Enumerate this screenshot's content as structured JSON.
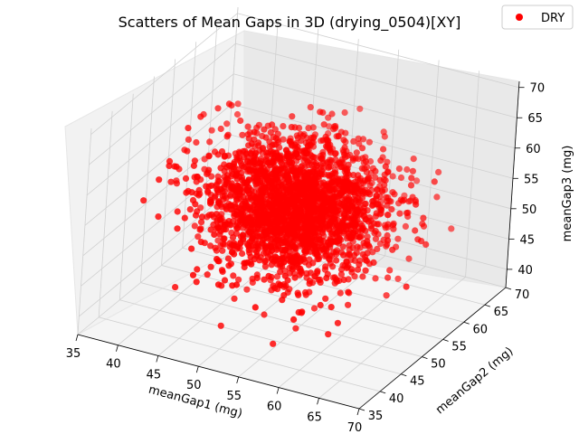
{
  "chart_data": {
    "type": "scatter",
    "projection": "3d",
    "title": "Scatters of Mean Gaps in 3D (drying_0504)[XY]",
    "xlabel": "meanGap1 (mg)",
    "ylabel": "meanGap2 (mg)",
    "zlabel": "meanGap3 (mg)",
    "xlim": [
      35,
      70
    ],
    "ylim": [
      35,
      70
    ],
    "zlim": [
      37,
      71
    ],
    "x_ticks": [
      "35",
      "40",
      "45",
      "50",
      "55",
      "60",
      "65",
      "70"
    ],
    "y_ticks": [
      "35",
      "40",
      "45",
      "50",
      "55",
      "60",
      "65",
      "70"
    ],
    "z_ticks": [
      "40",
      "45",
      "50",
      "55",
      "60",
      "65",
      "70"
    ],
    "grid": true,
    "legend_position": "top-right",
    "series": [
      {
        "name": "DRY",
        "color": "#ff0000",
        "distribution": {
          "mean": [
            52,
            53,
            54
          ],
          "std": [
            5,
            5,
            5
          ],
          "count": 2500
        }
      }
    ]
  }
}
